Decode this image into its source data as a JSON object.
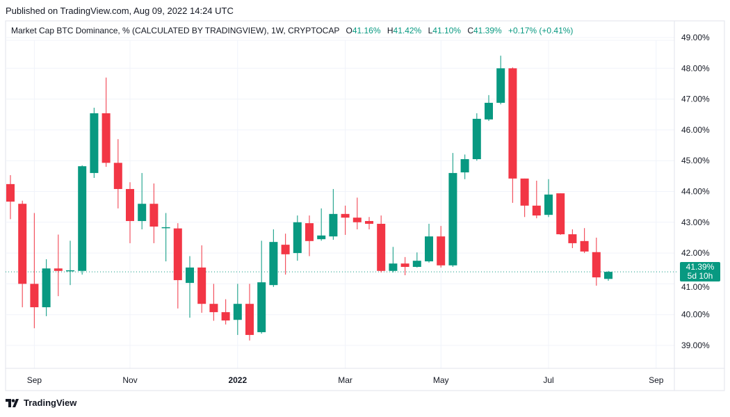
{
  "published": "Published on TradingView.com, Aug 09, 2022 14:24 UTC",
  "legend": {
    "symbol": "Market Cap BTC Dominance, % (CALCULATED BY TRADINGVIEW), 1W, CRYPTOCAP",
    "o_label": "O",
    "o": "41.16%",
    "h_label": "H",
    "h": "41.42%",
    "l_label": "L",
    "l": "41.10%",
    "c_label": "C",
    "c": "41.39%",
    "change": "+0.17% (+0.41%)"
  },
  "price_label": {
    "value": "41.39%",
    "countdown": "5d 10h"
  },
  "logo": "TradingView",
  "colors": {
    "up": "#089981",
    "down": "#f23645",
    "grid": "#f0f3fa"
  },
  "chart_data": {
    "type": "candlestick",
    "interval": "1W",
    "ylim": [
      38.3,
      49.4
    ],
    "yticks": [
      "39.00%",
      "40.00%",
      "41.00%",
      "42.00%",
      "43.00%",
      "44.00%",
      "45.00%",
      "46.00%",
      "47.00%",
      "48.00%",
      "49.00%"
    ],
    "ytick_values": [
      39,
      40,
      41,
      42,
      43,
      44,
      45,
      46,
      47,
      48,
      49
    ],
    "xticks": [
      {
        "label": "Sep",
        "date": "2021-09-06"
      },
      {
        "label": "Nov",
        "date": "2021-11-01"
      },
      {
        "label": "2022",
        "date": "2022-01-03",
        "bold": true
      },
      {
        "label": "Mar",
        "date": "2022-03-07"
      },
      {
        "label": "May",
        "date": "2022-05-02"
      },
      {
        "label": "Jul",
        "date": "2022-07-04"
      },
      {
        "label": "Sep",
        "date": "2022-09-05"
      }
    ],
    "start_date": "2021-08-23",
    "last_price": 41.39,
    "ohlc": [
      [
        44.24,
        44.53,
        43.1,
        43.67
      ],
      [
        43.6,
        43.7,
        40.24,
        41.0
      ],
      [
        41.0,
        43.3,
        39.56,
        40.24
      ],
      [
        40.24,
        41.8,
        39.95,
        41.5
      ],
      [
        41.5,
        42.6,
        40.6,
        41.42
      ],
      [
        41.42,
        42.4,
        40.96,
        41.44
      ],
      [
        41.42,
        44.85,
        41.3,
        44.82
      ],
      [
        44.6,
        46.72,
        44.44,
        46.54
      ],
      [
        46.54,
        47.7,
        44.8,
        44.93
      ],
      [
        44.93,
        45.7,
        43.45,
        44.08
      ],
      [
        44.08,
        44.3,
        42.32,
        43.04
      ],
      [
        43.04,
        44.6,
        42.77,
        43.6
      ],
      [
        43.6,
        44.26,
        42.32,
        42.86
      ],
      [
        42.82,
        43.3,
        41.73,
        42.84
      ],
      [
        42.8,
        42.97,
        40.2,
        41.12
      ],
      [
        41.03,
        41.9,
        39.9,
        41.53
      ],
      [
        41.53,
        42.25,
        40.06,
        40.35
      ],
      [
        40.35,
        41.0,
        39.8,
        40.08
      ],
      [
        40.08,
        40.5,
        39.68,
        39.81
      ],
      [
        39.83,
        41.0,
        39.34,
        40.35
      ],
      [
        40.35,
        41.0,
        39.16,
        39.34
      ],
      [
        39.43,
        42.4,
        39.38,
        41.05
      ],
      [
        40.96,
        42.77,
        40.9,
        42.36
      ],
      [
        42.27,
        42.63,
        41.3,
        41.96
      ],
      [
        42.0,
        43.22,
        41.75,
        43.0
      ],
      [
        42.97,
        43.22,
        41.9,
        42.39
      ],
      [
        42.45,
        43.45,
        42.4,
        42.57
      ],
      [
        42.54,
        44.08,
        42.43,
        43.27
      ],
      [
        43.27,
        43.54,
        42.59,
        43.15
      ],
      [
        43.15,
        43.8,
        42.77,
        43.0
      ],
      [
        43.04,
        43.17,
        42.77,
        42.95
      ],
      [
        42.95,
        43.22,
        41.37,
        41.42
      ],
      [
        41.42,
        42.2,
        41.37,
        41.66
      ],
      [
        41.66,
        41.87,
        41.28,
        41.55
      ],
      [
        41.55,
        42.02,
        41.53,
        41.75
      ],
      [
        41.73,
        42.95,
        41.69,
        42.54
      ],
      [
        42.54,
        42.88,
        41.53,
        41.6
      ],
      [
        41.6,
        45.25,
        41.55,
        44.6
      ],
      [
        44.62,
        45.2,
        44.4,
        45.05
      ],
      [
        45.05,
        46.54,
        45.0,
        46.36
      ],
      [
        46.34,
        47.13,
        46.29,
        46.88
      ],
      [
        46.88,
        48.41,
        46.83,
        48.0
      ],
      [
        48.0,
        48.03,
        43.63,
        44.42
      ],
      [
        44.42,
        44.42,
        43.17,
        43.54
      ],
      [
        43.54,
        44.35,
        43.13,
        43.22
      ],
      [
        43.24,
        44.4,
        43.17,
        43.9
      ],
      [
        43.94,
        43.94,
        42.59,
        42.61
      ],
      [
        42.61,
        42.77,
        42.16,
        42.32
      ],
      [
        42.39,
        42.81,
        42.0,
        42.05
      ],
      [
        42.03,
        42.5,
        40.94,
        41.21
      ],
      [
        41.16,
        41.42,
        41.1,
        41.39
      ]
    ]
  }
}
